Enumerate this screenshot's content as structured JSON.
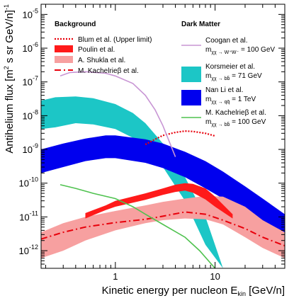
{
  "chart_data": {
    "type": "line",
    "xlabel": "Kinetic energy per nucleon E_kin [GeV/n]",
    "xlabel_main": "Kinetic energy per nucleon E",
    "xlabel_sub": "kin",
    "xlabel_unit": " [GeV/n]",
    "ylabel": "Antihelium flux [m² s sr GeV/n]⁻¹",
    "ylabel_main": "Antihelium flux [m",
    "ylabel_sup2": "2",
    "ylabel_mid": " s sr GeV/n]",
    "ylabel_sup": "-1",
    "x_scale": "log",
    "y_scale": "log",
    "xlim": [
      0.18,
      50
    ],
    "ylim": [
      3e-13,
      2e-05
    ],
    "x_ticks": [
      {
        "value": 1,
        "label": "1"
      },
      {
        "value": 10,
        "label": "10"
      }
    ],
    "y_ticks": [
      {
        "value": 1e-05,
        "base": "10",
        "exp": "-5"
      },
      {
        "value": 1e-06,
        "base": "10",
        "exp": "-6"
      },
      {
        "value": 1e-07,
        "base": "10",
        "exp": "-7"
      },
      {
        "value": 1e-08,
        "base": "10",
        "exp": "-8"
      },
      {
        "value": 1e-09,
        "base": "10",
        "exp": "-9"
      },
      {
        "value": 1e-10,
        "base": "10",
        "exp": "-10"
      },
      {
        "value": 1e-11,
        "base": "10",
        "exp": "-11"
      },
      {
        "value": 1e-12,
        "base": "10",
        "exp": "-12"
      }
    ],
    "grid": false,
    "legend_placement": "top",
    "legend": {
      "background_title": "Background",
      "dark_matter_title": "Dark Matter",
      "entries": [
        {
          "column": "background",
          "style": "dotted-line",
          "color": "#e8000b",
          "label": "Blum et al. (Upper limit)"
        },
        {
          "column": "background",
          "style": "band",
          "color": "#ff1a1a",
          "label": "Poulin et al."
        },
        {
          "column": "background",
          "style": "band",
          "color": "#f7a0a0",
          "label": "A. Shukla et al."
        },
        {
          "column": "background",
          "style": "dashdot-line",
          "color": "#e8000b",
          "label": "M. Kachelrieβ et al."
        },
        {
          "column": "dark",
          "style": "line",
          "color": "#c895d4",
          "label": "Coogan et al.",
          "sub": "m",
          "subscript": "χχ → W⁺W⁻",
          "suffix": " = 100 GeV"
        },
        {
          "column": "dark",
          "style": "band",
          "color": "#1cc6c6",
          "label": "Korsmeier et al.",
          "sub": "m",
          "subscript": "χχ → bb̄",
          "suffix": " = 71 GeV"
        },
        {
          "column": "dark",
          "style": "band",
          "color": "#0000ee",
          "label": "Nan Li et al.",
          "sub": "m",
          "subscript": "χχ → qq̄",
          "suffix": " = 1 TeV"
        },
        {
          "column": "dark",
          "style": "line",
          "color": "#4fc24f",
          "label": "M. Kachelrieβ et al.",
          "sub": "m",
          "subscript": "χχ → bb̄",
          "suffix": " = 100 GeV"
        }
      ]
    },
    "series": [
      {
        "name": "Blum et al. (Upper limit)",
        "kind": "line",
        "style": "dotted",
        "color": "#e8000b",
        "x": [
          2.0,
          2.5,
          3.0,
          4.0,
          5.0,
          6.0,
          8.0,
          10.0
        ],
        "y": [
          1.4e-09,
          2e-09,
          2.6e-09,
          3.2e-09,
          3.5e-09,
          3.4e-09,
          3e-09,
          2.5e-09
        ]
      },
      {
        "name": "Poulin et al.",
        "kind": "band",
        "color": "#ff1a1a",
        "x": [
          0.5,
          0.8,
          1.0,
          2.0,
          3.0,
          4.0,
          5.0,
          6.0,
          8.0,
          10.0,
          15.0
        ],
        "y_low": [
          9e-12,
          1.6e-11,
          2e-11,
          3.2e-11,
          4.5e-11,
          5.5e-11,
          6e-11,
          5.2e-11,
          3.3e-11,
          2e-11,
          9e-12
        ],
        "y_high": [
          1.3e-11,
          2.2e-11,
          3e-11,
          5e-11,
          7e-11,
          9e-11,
          1e-10,
          9.5e-11,
          7e-11,
          4e-11,
          1.2e-11
        ]
      },
      {
        "name": "A. Shukla et al.",
        "kind": "band",
        "color": "#f7a0a0",
        "x": [
          0.18,
          0.3,
          0.5,
          1.0,
          2.0,
          3.0,
          5.0,
          8.0,
          12.0,
          20.0,
          30.0,
          50.0
        ],
        "y_low": [
          6e-13,
          1e-12,
          2e-12,
          4e-12,
          6.5e-12,
          8e-12,
          9e-12,
          8.5e-12,
          6e-12,
          2.5e-12,
          1.2e-12,
          6e-13
        ],
        "y_high": [
          3.5e-12,
          6.5e-12,
          1e-11,
          1.5e-11,
          2.2e-11,
          2.8e-11,
          3.5e-11,
          4.2e-11,
          4e-11,
          2e-11,
          8e-12,
          3.5e-12
        ]
      },
      {
        "name": "M. Kachelrieβ et al.",
        "kind": "line",
        "style": "dashdot",
        "color": "#e8000b",
        "x": [
          0.18,
          0.3,
          0.5,
          1.0,
          2.0,
          3.0,
          5.0,
          8.0,
          12.0,
          20.0,
          30.0,
          50.0
        ],
        "y": [
          2.2e-12,
          3.5e-12,
          5e-12,
          6.8e-12,
          8.5e-12,
          1.05e-11,
          1.4e-11,
          1.2e-11,
          8e-12,
          4.5e-12,
          2.5e-12,
          1.4e-12
        ]
      },
      {
        "name": "Coogan et al.",
        "kind": "line",
        "style": "solid",
        "color": "#c895d4",
        "x": [
          0.28,
          0.35,
          0.5,
          0.8,
          1.0,
          1.5,
          2.0,
          2.5,
          3.0,
          4.0
        ],
        "y": [
          1.5e-07,
          1.9e-07,
          2e-07,
          1.8e-07,
          1.5e-07,
          9e-08,
          4e-08,
          1.5e-08,
          5e-09,
          6e-10
        ]
      },
      {
        "name": "Korsmeier et al.",
        "kind": "band",
        "color": "#1cc6c6",
        "x": [
          0.18,
          0.25,
          0.4,
          0.6,
          1.0,
          1.5,
          2.0,
          3.0,
          5.0,
          8.0,
          12.0
        ],
        "y_low": [
          4e-09,
          4.5e-09,
          6e-09,
          5.5e-09,
          4e-09,
          2.2e-09,
          1.2e-09,
          3e-10,
          3e-11,
          1.5e-12,
          3e-13
        ],
        "y_high": [
          2.8e-08,
          3.5e-08,
          3.7e-08,
          3.3e-08,
          2.2e-08,
          1.2e-08,
          6e-09,
          1.5e-09,
          1.5e-10,
          1e-11,
          3e-13
        ]
      },
      {
        "name": "Nan Li et al.",
        "kind": "band",
        "color": "#0000ee",
        "x": [
          0.18,
          0.3,
          0.5,
          0.8,
          1.0,
          2.0,
          3.0,
          5.0,
          8.0,
          12.0,
          20.0,
          30.0,
          50.0
        ],
        "y_low": [
          2e-10,
          3e-10,
          4.5e-10,
          5.5e-10,
          5.5e-10,
          4e-10,
          2.8e-10,
          1.5e-10,
          7e-11,
          3.5e-11,
          1.4e-11,
          7e-12,
          2.5e-12
        ],
        "y_high": [
          1e-09,
          1.5e-09,
          2.1e-09,
          2.6e-09,
          2.6e-09,
          2e-09,
          1.5e-09,
          8.5e-10,
          4.5e-10,
          2.2e-10,
          8e-11,
          3.5e-11,
          1.2e-11
        ]
      },
      {
        "name": "M. Kachelrieβ et al.",
        "kind": "line",
        "style": "solid",
        "color": "#4fc24f",
        "x": [
          0.28,
          0.4,
          0.6,
          1.0,
          1.5,
          2.0,
          3.0,
          5.0,
          7.0,
          10.0
        ],
        "y": [
          9e-11,
          7e-11,
          5e-11,
          3.5e-11,
          2e-11,
          1.2e-11,
          6e-12,
          2.5e-12,
          1e-12,
          3e-13
        ]
      }
    ]
  }
}
